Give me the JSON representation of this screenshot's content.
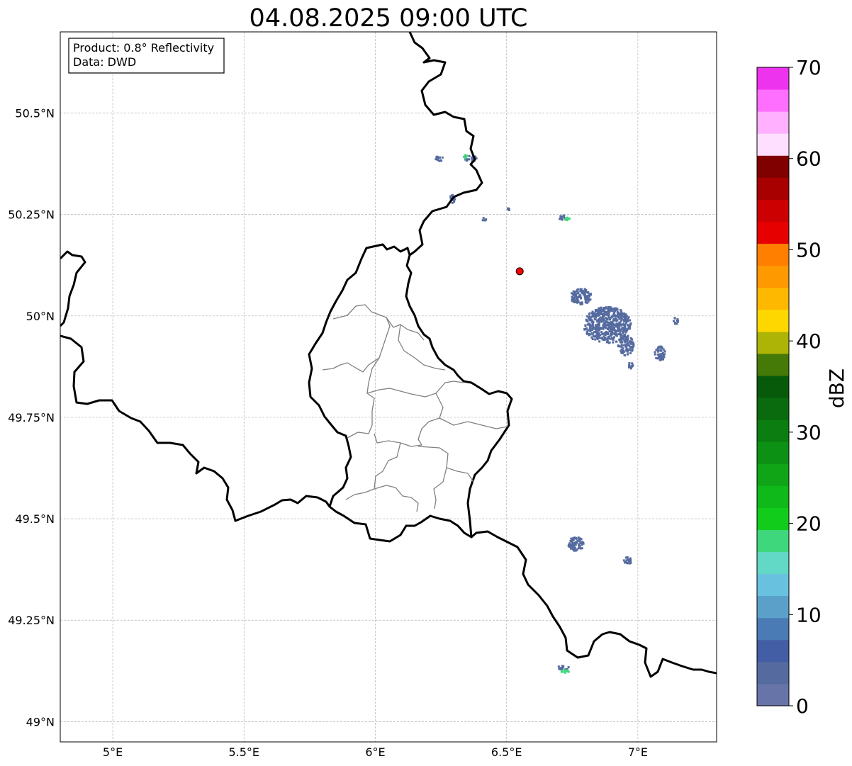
{
  "title": "04.08.2025 09:00 UTC",
  "info_box": {
    "product": "Product: 0.8° Reflectivity",
    "source": "Data: DWD"
  },
  "axes": {
    "lon_range": [
      4.8,
      7.3
    ],
    "lat_range": [
      48.95,
      50.7
    ],
    "x_ticks": [
      {
        "value": 5.0,
        "label": "5°E"
      },
      {
        "value": 5.5,
        "label": "5.5°E"
      },
      {
        "value": 6.0,
        "label": "6°E"
      },
      {
        "value": 6.5,
        "label": "6.5°E"
      },
      {
        "value": 7.0,
        "label": "7°E"
      }
    ],
    "y_ticks": [
      {
        "value": 49.0,
        "label": "49°N"
      },
      {
        "value": 49.25,
        "label": "49.25°N"
      },
      {
        "value": 49.5,
        "label": "49.5°N"
      },
      {
        "value": 49.75,
        "label": "49.75°N"
      },
      {
        "value": 50.0,
        "label": "50°N"
      },
      {
        "value": 50.25,
        "label": "50.25°N"
      },
      {
        "value": 50.5,
        "label": "50.5°N"
      }
    ],
    "gridlines": true
  },
  "marker": {
    "lon": 6.55,
    "lat": 50.11,
    "color": "#ff0000"
  },
  "colorbar": {
    "label": "dBZ",
    "min": 0,
    "max": 70,
    "ticks": [
      {
        "value": 0,
        "label": "0"
      },
      {
        "value": 10,
        "label": "10"
      },
      {
        "value": 20,
        "label": "20"
      },
      {
        "value": 30,
        "label": "30"
      },
      {
        "value": 40,
        "label": "40"
      },
      {
        "value": 50,
        "label": "50"
      },
      {
        "value": 60,
        "label": "60"
      },
      {
        "value": 70,
        "label": "70"
      }
    ],
    "colors": [
      "#6774a8",
      "#556ba0",
      "#435ea4",
      "#4b7bb5",
      "#5ba0c9",
      "#68c2df",
      "#62d8c6",
      "#3fd77b",
      "#12cc1c",
      "#10b91a",
      "#0fa516",
      "#0d9114",
      "#0b7d11",
      "#0a6a0e",
      "#085a0b",
      "#467a08",
      "#adb405",
      "#ffd700",
      "#ffb800",
      "#ff9900",
      "#ff7f00",
      "#e60000",
      "#cc0000",
      "#a80000",
      "#800000",
      "#ffdfff",
      "#ffb0ff",
      "#ff6fff",
      "#ee33ee"
    ]
  },
  "radar_echoes": [
    {
      "lon": 6.88,
      "lat": 49.98,
      "rlon": 0.09,
      "rlat": 0.045,
      "dbz": 3
    },
    {
      "lon": 6.78,
      "lat": 50.05,
      "rlon": 0.04,
      "rlat": 0.02,
      "dbz": 3
    },
    {
      "lon": 6.95,
      "lat": 49.93,
      "rlon": 0.03,
      "rlat": 0.025,
      "dbz": 3
    },
    {
      "lon": 7.08,
      "lat": 49.91,
      "rlon": 0.02,
      "rlat": 0.02,
      "dbz": 3
    },
    {
      "lon": 7.14,
      "lat": 49.99,
      "rlon": 0.01,
      "rlat": 0.008,
      "dbz": 3
    },
    {
      "lon": 6.97,
      "lat": 49.88,
      "rlon": 0.01,
      "rlat": 0.008,
      "dbz": 3
    },
    {
      "lon": 6.71,
      "lat": 50.245,
      "rlon": 0.015,
      "rlat": 0.006,
      "dbz": 4
    },
    {
      "lon": 6.73,
      "lat": 50.24,
      "rlon": 0.01,
      "rlat": 0.005,
      "dbz": 17
    },
    {
      "lon": 6.24,
      "lat": 50.39,
      "rlon": 0.015,
      "rlat": 0.007,
      "dbz": 4
    },
    {
      "lon": 6.36,
      "lat": 50.39,
      "rlon": 0.025,
      "rlat": 0.007,
      "dbz": 4
    },
    {
      "lon": 6.34,
      "lat": 50.395,
      "rlon": 0.008,
      "rlat": 0.005,
      "dbz": 17
    },
    {
      "lon": 6.29,
      "lat": 50.29,
      "rlon": 0.01,
      "rlat": 0.012,
      "dbz": 4
    },
    {
      "lon": 6.41,
      "lat": 50.24,
      "rlon": 0.008,
      "rlat": 0.004,
      "dbz": 4
    },
    {
      "lon": 6.5,
      "lat": 50.265,
      "rlon": 0.007,
      "rlat": 0.003,
      "dbz": 4
    },
    {
      "lon": 6.76,
      "lat": 49.44,
      "rlon": 0.03,
      "rlat": 0.018,
      "dbz": 4
    },
    {
      "lon": 6.96,
      "lat": 49.4,
      "rlon": 0.02,
      "rlat": 0.008,
      "dbz": 4
    },
    {
      "lon": 6.71,
      "lat": 49.135,
      "rlon": 0.025,
      "rlat": 0.005,
      "dbz": 4
    },
    {
      "lon": 6.72,
      "lat": 49.125,
      "rlon": 0.015,
      "rlat": 0.005,
      "dbz": 17
    }
  ]
}
